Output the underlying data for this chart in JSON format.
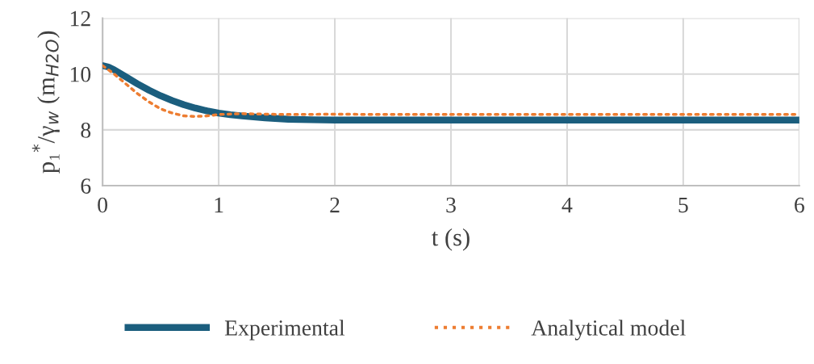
{
  "chart_data": {
    "type": "line",
    "xlabel": "t (s)",
    "ylabel": "p₁$^{*}$/γ$_{w}$ (m$_{H2O}$)",
    "xlim": [
      0,
      6
    ],
    "xticks": [
      0,
      1,
      2,
      3,
      4,
      5,
      6
    ],
    "ylim": [
      6,
      12
    ],
    "yticks": [
      6,
      8,
      10,
      12
    ],
    "grid": true,
    "legend": "bottom",
    "marker": "none",
    "series": [
      {
        "name": "Experimental",
        "color": "#1b5e7e",
        "line_style": "solid",
        "x": [
          0,
          0.05,
          0.1,
          0.2,
          0.3,
          0.4,
          0.5,
          0.6,
          0.7,
          0.8,
          0.9,
          1.0,
          1.1,
          1.2,
          1.4,
          1.6,
          1.8,
          2.0,
          2.5,
          3,
          3.5,
          4,
          4.5,
          5,
          5.5,
          6
        ],
        "values": [
          10.3,
          10.25,
          10.15,
          9.9,
          9.65,
          9.42,
          9.22,
          9.05,
          8.9,
          8.78,
          8.68,
          8.6,
          8.54,
          8.5,
          8.43,
          8.38,
          8.36,
          8.35,
          8.35,
          8.35,
          8.35,
          8.35,
          8.35,
          8.35,
          8.35,
          8.35
        ]
      },
      {
        "name": "Analytical model",
        "color": "#ed7d31",
        "line_style": "dotted",
        "x": [
          0,
          0.1,
          0.2,
          0.3,
          0.4,
          0.5,
          0.6,
          0.7,
          0.8,
          0.9,
          1.0,
          1.2,
          1.4,
          1.6,
          2.0,
          2.5,
          3,
          4,
          5,
          6
        ],
        "values": [
          10.3,
          10.0,
          9.65,
          9.3,
          9.0,
          8.75,
          8.6,
          8.5,
          8.48,
          8.5,
          8.55,
          8.58,
          8.56,
          8.55,
          8.56,
          8.55,
          8.55,
          8.55,
          8.55,
          8.55
        ]
      }
    ]
  }
}
